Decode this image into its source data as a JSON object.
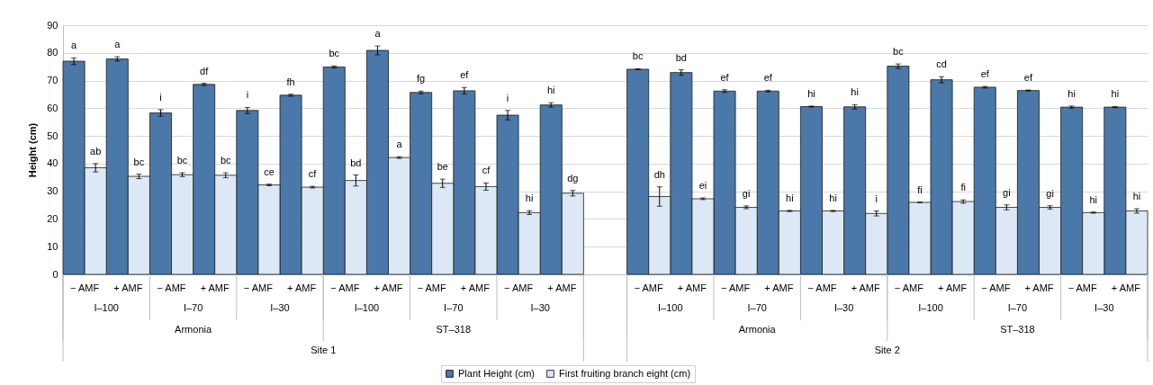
{
  "chart_data": {
    "type": "bar",
    "ylabel": "Height (cm)",
    "categories": [
      "− AMF",
      "+ AMF",
      "− AMF",
      "+ AMF",
      "− AMF",
      "+ AMF",
      "− AMF",
      "+ AMF",
      "− AMF",
      "+ AMF",
      "− AMF",
      "+ AMF",
      null,
      "− AMF",
      "+ AMF",
      "− AMF",
      "+ AMF",
      "− AMF",
      "+ AMF",
      "− AMF",
      "+ AMF",
      "− AMF",
      "+ AMF",
      "− AMF",
      "+ AMF"
    ],
    "series": [
      {
        "name": "Plant Height (cm)",
        "color": "#4a78a8",
        "values": [
          77.0,
          77.8,
          58.3,
          68.6,
          59.2,
          64.7,
          74.9,
          80.9,
          65.7,
          66.3,
          57.5,
          61.2,
          null,
          74.1,
          72.9,
          66.2,
          66.2,
          60.6,
          60.5,
          75.2,
          70.3,
          67.6,
          66.4,
          60.4,
          60.4
        ],
        "errors": [
          1.2,
          0.8,
          1.2,
          0.4,
          1.1,
          0.4,
          0.4,
          1.6,
          0.5,
          1.2,
          1.7,
          0.8,
          null,
          0.2,
          1.0,
          0.5,
          0.3,
          0.2,
          0.8,
          0.8,
          1.1,
          0.3,
          0.2,
          0.4,
          0.2
        ],
        "value_labels": [
          "a",
          "a",
          "i",
          "df",
          "i",
          "fh",
          "bc",
          "a",
          "fg",
          "ef",
          "i",
          "hi",
          null,
          "bc",
          "bd",
          "ef",
          "ef",
          "hi",
          "hi",
          "bc",
          "cd",
          "ef",
          "ef",
          "hi",
          "hi"
        ]
      },
      {
        "name": "First fruiting branch eight (cm)",
        "color": "#dce8f5",
        "values": [
          38.5,
          35.4,
          36.0,
          35.8,
          32.3,
          31.5,
          33.9,
          42.2,
          32.9,
          31.7,
          22.3,
          29.3,
          null,
          28.1,
          27.3,
          24.2,
          22.9,
          22.9,
          22.0,
          26.0,
          26.3,
          24.2,
          24.2,
          22.3,
          22.9
        ],
        "errors": [
          1.5,
          0.8,
          0.7,
          0.9,
          0.3,
          0.3,
          2.0,
          0.3,
          1.5,
          1.3,
          0.7,
          1.0,
          null,
          3.5,
          0.3,
          0.5,
          0.2,
          0.2,
          0.9,
          0.1,
          0.6,
          0.9,
          0.6,
          0.2,
          0.8
        ],
        "value_labels": [
          "ab",
          "bc",
          "bc",
          "bc",
          "ce",
          "cf",
          "bd",
          "a",
          "be",
          "cf",
          "hi",
          "dg",
          null,
          "dh",
          "ei",
          "gi",
          "hi",
          "hi",
          "i",
          "fi",
          "fi",
          "gi",
          "gi",
          "hi",
          "hi"
        ]
      }
    ],
    "ylim": [
      0,
      90
    ],
    "yticks": [
      0,
      10,
      20,
      30,
      40,
      50,
      60,
      70,
      80,
      90
    ],
    "grid": "y",
    "legend": "bottom",
    "annotations": [
      "I–100",
      "I–70",
      "I–30",
      "I–100",
      "I–70",
      "I–30",
      "I–100",
      "I–70",
      "I–30",
      "I–100",
      "I–70",
      "I–30",
      "Armonia",
      "ST–318",
      "Armonia",
      "ST–318",
      "Site 1",
      "Site 2"
    ]
  }
}
